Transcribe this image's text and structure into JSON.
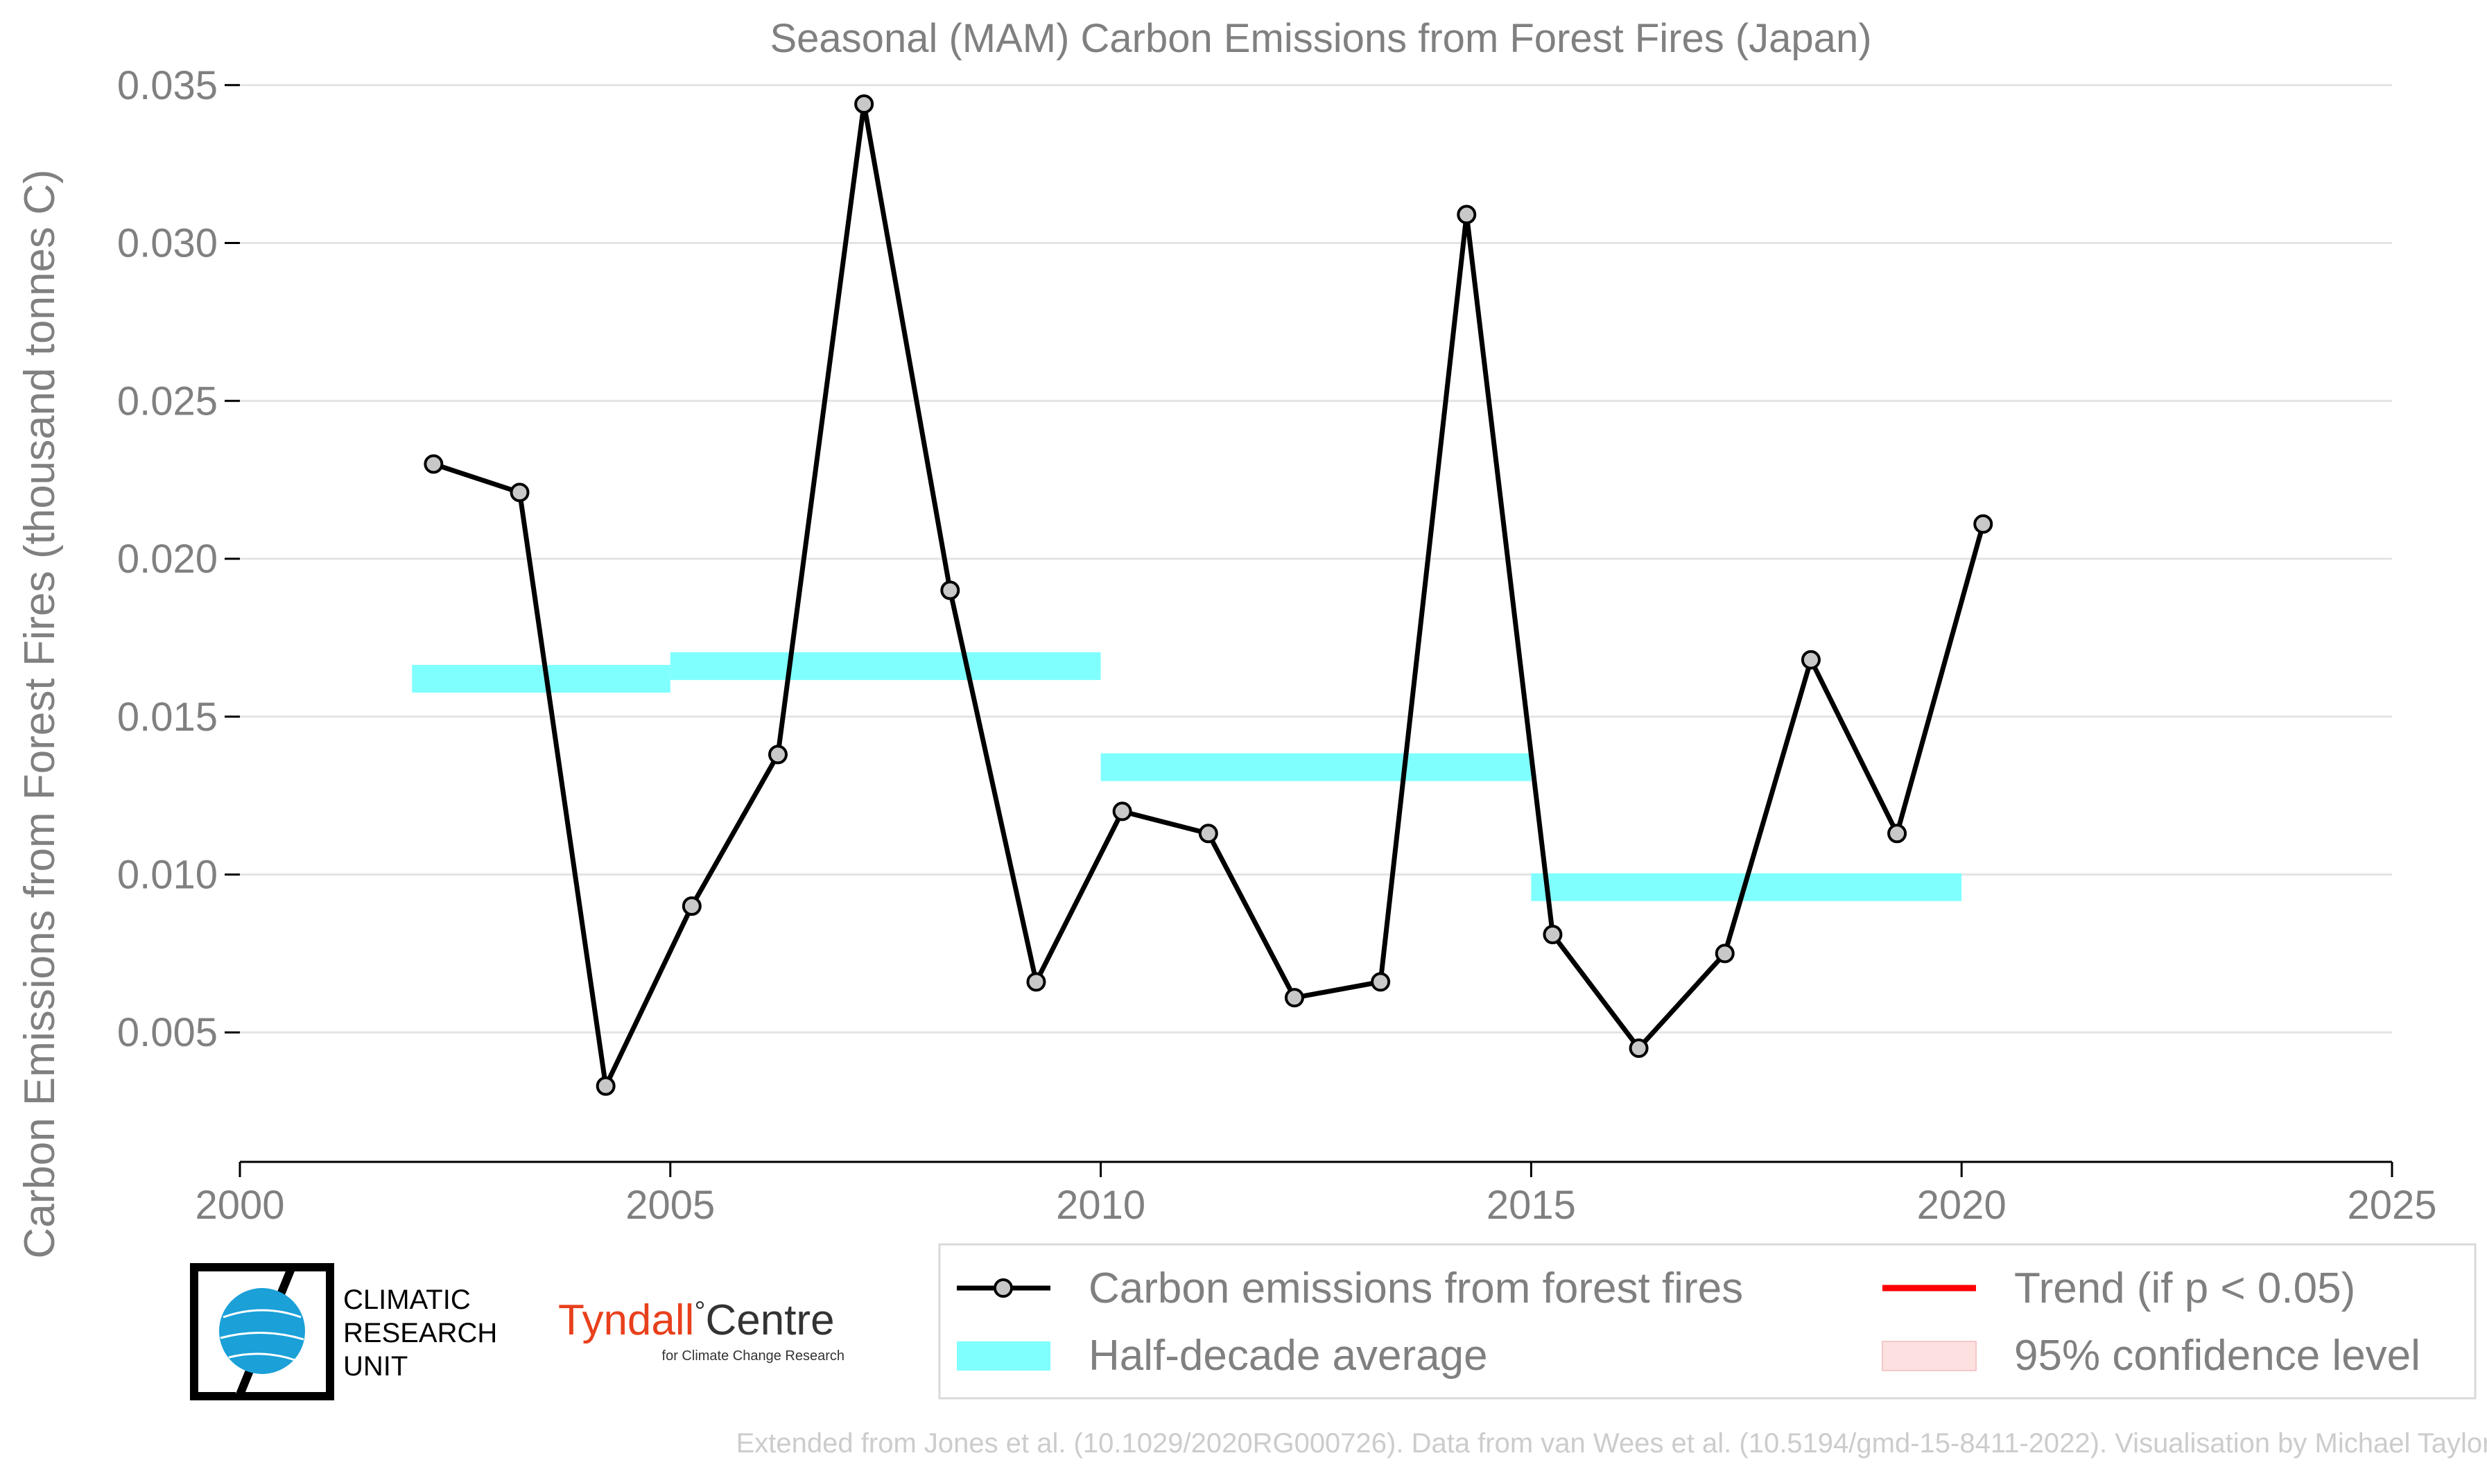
{
  "chart_data": {
    "type": "line",
    "title": "Seasonal (MAM) Carbon Emissions from Forest Fires (Japan)",
    "xlabel": "",
    "ylabel": "Carbon Emissions from Forest Fires (thousand tonnes C)",
    "xlim": [
      2000,
      2025
    ],
    "ylim": [
      0.0009,
      0.0355
    ],
    "x_ticks": [
      "2000",
      "2005",
      "2010",
      "2015",
      "2020",
      "2025"
    ],
    "y_ticks": [
      "0.005",
      "0.010",
      "0.015",
      "0.020",
      "0.025",
      "0.030",
      "0.035"
    ],
    "grid": "horizontal",
    "legend_position": "bottom-right",
    "series": [
      {
        "name": "Carbon emissions from forest fires",
        "color": "#000000",
        "x": [
          2002.25,
          2003.25,
          2004.25,
          2005.25,
          2006.25,
          2007.25,
          2008.25,
          2009.25,
          2010.25,
          2011.25,
          2012.25,
          2013.25,
          2014.25,
          2015.25,
          2016.25,
          2017.25,
          2018.25,
          2019.25,
          2020.25
        ],
        "values": [
          0.023,
          0.0221,
          0.0033,
          0.009,
          0.0138,
          0.0344,
          0.019,
          0.0066,
          0.012,
          0.0113,
          0.0061,
          0.0066,
          0.0309,
          0.0081,
          0.0045,
          0.0075,
          0.0168,
          0.0113,
          0.0211
        ]
      }
    ],
    "half_decade_average": {
      "name": "Half-decade average",
      "color": "#80ffff",
      "periods": [
        {
          "start": 2002,
          "end": 2005,
          "value": 0.0162
        },
        {
          "start": 2005,
          "end": 2010,
          "value": 0.0166
        },
        {
          "start": 2010,
          "end": 2015,
          "value": 0.0134
        },
        {
          "start": 2015,
          "end": 2020,
          "value": 0.0096
        }
      ]
    },
    "legend": [
      {
        "key": "emissions",
        "label": "Carbon emissions from forest fires",
        "color": "#000000"
      },
      {
        "key": "trend",
        "label": "Trend (if p < 0.05)",
        "color": "#ff0000"
      },
      {
        "key": "average",
        "label": "Half-decade average",
        "color": "#80ffff"
      },
      {
        "key": "confidence",
        "label": "95% confidence level",
        "color": "#fde0e0"
      }
    ]
  },
  "logos": {
    "cru_lines": [
      "CLIMATIC",
      "RESEARCH",
      "UNIT"
    ],
    "tyndall_name": "Tyndall",
    "tyndall_degree": "°",
    "tyndall_centre": "Centre",
    "tyndall_sub": "for Climate Change Research",
    "tyndall_color": "#e8401c"
  },
  "footer": "Extended from Jones et al. (10.1029/2020RG000726). Data from van Wees et al. (10.5194/gmd-15-8411-2022). Visualisation by Michael Taylor."
}
